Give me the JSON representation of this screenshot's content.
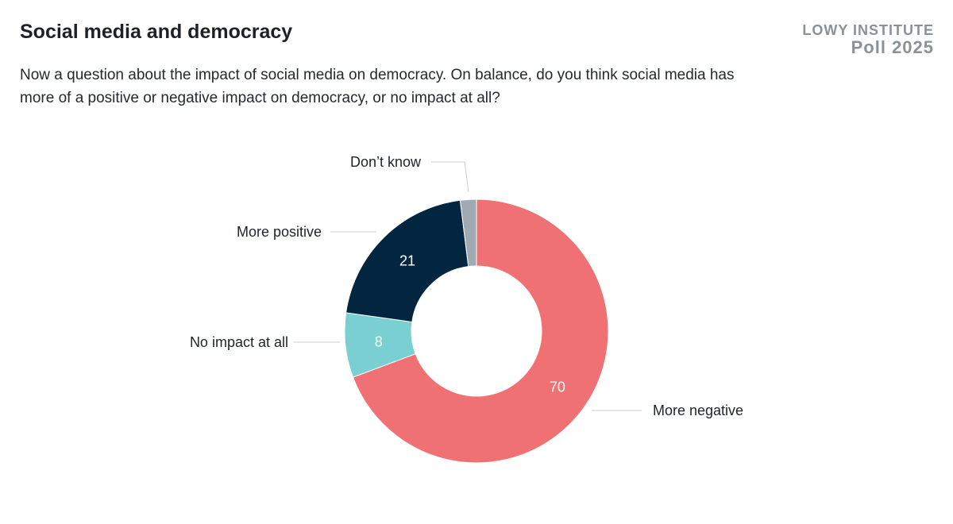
{
  "header": {
    "title": "Social media and democracy",
    "subtitle": "Now a question about the impact of social media on democracy. On balance, do you think social media has more of a positive or negative impact on democracy, or no impact at all?",
    "brand_line1": "LOWY INSTITUTE",
    "brand_line2": "Poll 2025"
  },
  "chart_data": {
    "type": "pie",
    "donut": true,
    "title": "Social media and democracy",
    "categories": [
      "More negative",
      "No impact at all",
      "More positive",
      "Don’t know"
    ],
    "values": [
      70,
      8,
      21,
      2
    ],
    "data_labels": [
      "70",
      "8",
      "21",
      ""
    ],
    "colors": [
      "#f07173",
      "#7acfd2",
      "#02263f",
      "#a0aab3"
    ],
    "start": "12 o'clock, clockwise"
  }
}
